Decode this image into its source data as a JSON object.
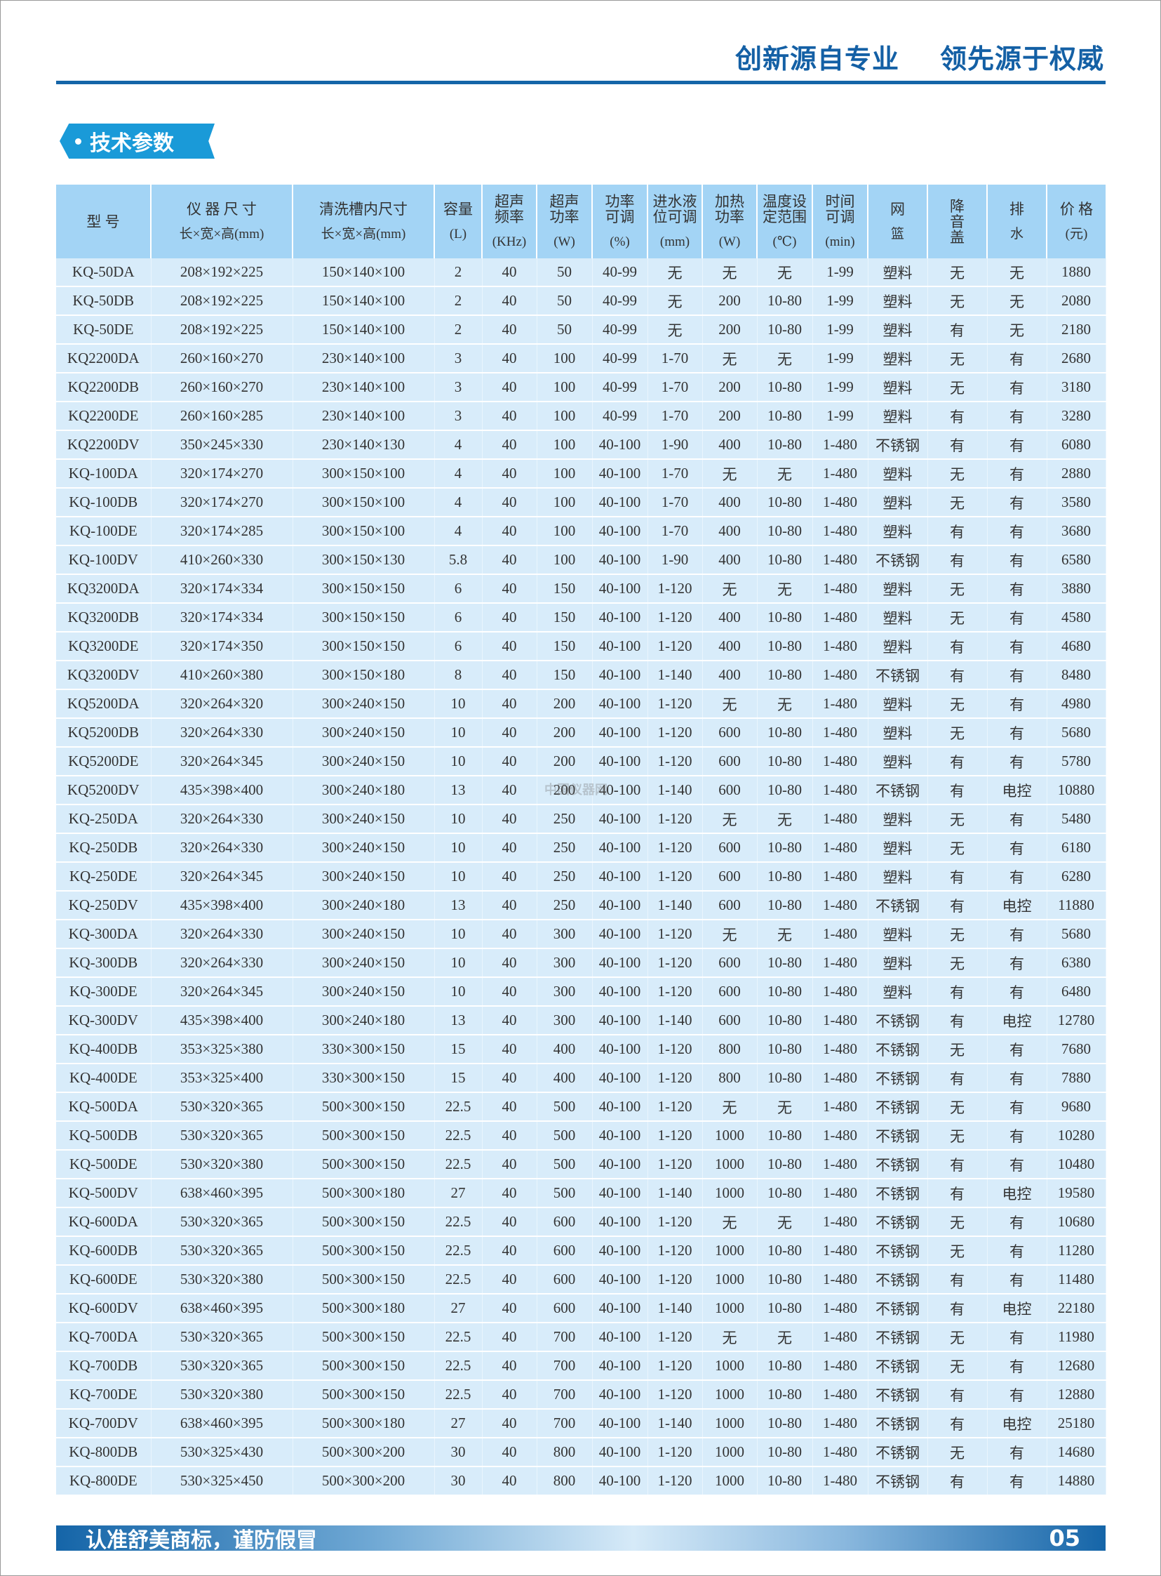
{
  "header": {
    "slogan_1": "创新源自专业",
    "slogan_2": "领先源于权威"
  },
  "section_title": "技术参数",
  "colors": {
    "brand": "#1565a8",
    "tag": "#1a9ad8",
    "header_cell": "#a3d4f5",
    "row": "#d8ecfa"
  },
  "table": {
    "columns": [
      {
        "top": "型  号",
        "bot": ""
      },
      {
        "top": "仪 器 尺 寸",
        "bot": "长×宽×高(mm)"
      },
      {
        "top": "清洗槽内尺寸",
        "bot": "长×宽×高(mm)"
      },
      {
        "top": "容量",
        "bot": "(L)"
      },
      {
        "top": "超声\n频率",
        "bot": "(KHz)"
      },
      {
        "top": "超声\n功率",
        "bot": "(W)"
      },
      {
        "top": "功率\n可调",
        "bot": "(%)"
      },
      {
        "top": "进水液\n位可调",
        "bot": "(mm)"
      },
      {
        "top": "加热\n功率",
        "bot": "(W)"
      },
      {
        "top": "温度设\n定范围",
        "bot": "(℃)"
      },
      {
        "top": "时间\n可调",
        "bot": "(min)"
      },
      {
        "top": "网",
        "bot": "篮"
      },
      {
        "top": "降\n音\n盖",
        "bot": ""
      },
      {
        "top": "排",
        "bot": "水"
      },
      {
        "top": "价 格",
        "bot": "(元)"
      }
    ],
    "rows": [
      [
        "KQ-50DA",
        "208×192×225",
        "150×140×100",
        "2",
        "40",
        "50",
        "40-99",
        "无",
        "无",
        "无",
        "1-99",
        "塑料",
        "无",
        "无",
        "1880"
      ],
      [
        "KQ-50DB",
        "208×192×225",
        "150×140×100",
        "2",
        "40",
        "50",
        "40-99",
        "无",
        "200",
        "10-80",
        "1-99",
        "塑料",
        "无",
        "无",
        "2080"
      ],
      [
        "KQ-50DE",
        "208×192×225",
        "150×140×100",
        "2",
        "40",
        "50",
        "40-99",
        "无",
        "200",
        "10-80",
        "1-99",
        "塑料",
        "有",
        "无",
        "2180"
      ],
      [
        "KQ2200DA",
        "260×160×270",
        "230×140×100",
        "3",
        "40",
        "100",
        "40-99",
        "1-70",
        "无",
        "无",
        "1-99",
        "塑料",
        "无",
        "有",
        "2680"
      ],
      [
        "KQ2200DB",
        "260×160×270",
        "230×140×100",
        "3",
        "40",
        "100",
        "40-99",
        "1-70",
        "200",
        "10-80",
        "1-99",
        "塑料",
        "无",
        "有",
        "3180"
      ],
      [
        "KQ2200DE",
        "260×160×285",
        "230×140×100",
        "3",
        "40",
        "100",
        "40-99",
        "1-70",
        "200",
        "10-80",
        "1-99",
        "塑料",
        "有",
        "有",
        "3280"
      ],
      [
        "KQ2200DV",
        "350×245×330",
        "230×140×130",
        "4",
        "40",
        "100",
        "40-100",
        "1-90",
        "400",
        "10-80",
        "1-480",
        "不锈钢",
        "有",
        "有",
        "6080"
      ],
      [
        "KQ-100DA",
        "320×174×270",
        "300×150×100",
        "4",
        "40",
        "100",
        "40-100",
        "1-70",
        "无",
        "无",
        "1-480",
        "塑料",
        "无",
        "有",
        "2880"
      ],
      [
        "KQ-100DB",
        "320×174×270",
        "300×150×100",
        "4",
        "40",
        "100",
        "40-100",
        "1-70",
        "400",
        "10-80",
        "1-480",
        "塑料",
        "无",
        "有",
        "3580"
      ],
      [
        "KQ-100DE",
        "320×174×285",
        "300×150×100",
        "4",
        "40",
        "100",
        "40-100",
        "1-70",
        "400",
        "10-80",
        "1-480",
        "塑料",
        "有",
        "有",
        "3680"
      ],
      [
        "KQ-100DV",
        "410×260×330",
        "300×150×130",
        "5.8",
        "40",
        "100",
        "40-100",
        "1-90",
        "400",
        "10-80",
        "1-480",
        "不锈钢",
        "有",
        "有",
        "6580"
      ],
      [
        "KQ3200DA",
        "320×174×334",
        "300×150×150",
        "6",
        "40",
        "150",
        "40-100",
        "1-120",
        "无",
        "无",
        "1-480",
        "塑料",
        "无",
        "有",
        "3880"
      ],
      [
        "KQ3200DB",
        "320×174×334",
        "300×150×150",
        "6",
        "40",
        "150",
        "40-100",
        "1-120",
        "400",
        "10-80",
        "1-480",
        "塑料",
        "无",
        "有",
        "4580"
      ],
      [
        "KQ3200DE",
        "320×174×350",
        "300×150×150",
        "6",
        "40",
        "150",
        "40-100",
        "1-120",
        "400",
        "10-80",
        "1-480",
        "塑料",
        "有",
        "有",
        "4680"
      ],
      [
        "KQ3200DV",
        "410×260×380",
        "300×150×180",
        "8",
        "40",
        "150",
        "40-100",
        "1-140",
        "400",
        "10-80",
        "1-480",
        "不锈钢",
        "有",
        "有",
        "8480"
      ],
      [
        "KQ5200DA",
        "320×264×320",
        "300×240×150",
        "10",
        "40",
        "200",
        "40-100",
        "1-120",
        "无",
        "无",
        "1-480",
        "塑料",
        "无",
        "有",
        "4980"
      ],
      [
        "KQ5200DB",
        "320×264×330",
        "300×240×150",
        "10",
        "40",
        "200",
        "40-100",
        "1-120",
        "600",
        "10-80",
        "1-480",
        "塑料",
        "无",
        "有",
        "5680"
      ],
      [
        "KQ5200DE",
        "320×264×345",
        "300×240×150",
        "10",
        "40",
        "200",
        "40-100",
        "1-120",
        "600",
        "10-80",
        "1-480",
        "塑料",
        "有",
        "有",
        "5780"
      ],
      [
        "KQ5200DV",
        "435×398×400",
        "300×240×180",
        "13",
        "40",
        "200",
        "40-100",
        "1-140",
        "600",
        "10-80",
        "1-480",
        "不锈钢",
        "有",
        "电控",
        "10880"
      ],
      [
        "KQ-250DA",
        "320×264×330",
        "300×240×150",
        "10",
        "40",
        "250",
        "40-100",
        "1-120",
        "无",
        "无",
        "1-480",
        "塑料",
        "无",
        "有",
        "5480"
      ],
      [
        "KQ-250DB",
        "320×264×330",
        "300×240×150",
        "10",
        "40",
        "250",
        "40-100",
        "1-120",
        "600",
        "10-80",
        "1-480",
        "塑料",
        "无",
        "有",
        "6180"
      ],
      [
        "KQ-250DE",
        "320×264×345",
        "300×240×150",
        "10",
        "40",
        "250",
        "40-100",
        "1-120",
        "600",
        "10-80",
        "1-480",
        "塑料",
        "有",
        "有",
        "6280"
      ],
      [
        "KQ-250DV",
        "435×398×400",
        "300×240×180",
        "13",
        "40",
        "250",
        "40-100",
        "1-140",
        "600",
        "10-80",
        "1-480",
        "不锈钢",
        "有",
        "电控",
        "11880"
      ],
      [
        "KQ-300DA",
        "320×264×330",
        "300×240×150",
        "10",
        "40",
        "300",
        "40-100",
        "1-120",
        "无",
        "无",
        "1-480",
        "塑料",
        "无",
        "有",
        "5680"
      ],
      [
        "KQ-300DB",
        "320×264×330",
        "300×240×150",
        "10",
        "40",
        "300",
        "40-100",
        "1-120",
        "600",
        "10-80",
        "1-480",
        "塑料",
        "无",
        "有",
        "6380"
      ],
      [
        "KQ-300DE",
        "320×264×345",
        "300×240×150",
        "10",
        "40",
        "300",
        "40-100",
        "1-120",
        "600",
        "10-80",
        "1-480",
        "塑料",
        "有",
        "有",
        "6480"
      ],
      [
        "KQ-300DV",
        "435×398×400",
        "300×240×180",
        "13",
        "40",
        "300",
        "40-100",
        "1-140",
        "600",
        "10-80",
        "1-480",
        "不锈钢",
        "有",
        "电控",
        "12780"
      ],
      [
        "KQ-400DB",
        "353×325×380",
        "330×300×150",
        "15",
        "40",
        "400",
        "40-100",
        "1-120",
        "800",
        "10-80",
        "1-480",
        "不锈钢",
        "无",
        "有",
        "7680"
      ],
      [
        "KQ-400DE",
        "353×325×400",
        "330×300×150",
        "15",
        "40",
        "400",
        "40-100",
        "1-120",
        "800",
        "10-80",
        "1-480",
        "不锈钢",
        "有",
        "有",
        "7880"
      ],
      [
        "KQ-500DA",
        "530×320×365",
        "500×300×150",
        "22.5",
        "40",
        "500",
        "40-100",
        "1-120",
        "无",
        "无",
        "1-480",
        "不锈钢",
        "无",
        "有",
        "9680"
      ],
      [
        "KQ-500DB",
        "530×320×365",
        "500×300×150",
        "22.5",
        "40",
        "500",
        "40-100",
        "1-120",
        "1000",
        "10-80",
        "1-480",
        "不锈钢",
        "无",
        "有",
        "10280"
      ],
      [
        "KQ-500DE",
        "530×320×380",
        "500×300×150",
        "22.5",
        "40",
        "500",
        "40-100",
        "1-120",
        "1000",
        "10-80",
        "1-480",
        "不锈钢",
        "有",
        "有",
        "10480"
      ],
      [
        "KQ-500DV",
        "638×460×395",
        "500×300×180",
        "27",
        "40",
        "500",
        "40-100",
        "1-140",
        "1000",
        "10-80",
        "1-480",
        "不锈钢",
        "有",
        "电控",
        "19580"
      ],
      [
        "KQ-600DA",
        "530×320×365",
        "500×300×150",
        "22.5",
        "40",
        "600",
        "40-100",
        "1-120",
        "无",
        "无",
        "1-480",
        "不锈钢",
        "无",
        "有",
        "10680"
      ],
      [
        "KQ-600DB",
        "530×320×365",
        "500×300×150",
        "22.5",
        "40",
        "600",
        "40-100",
        "1-120",
        "1000",
        "10-80",
        "1-480",
        "不锈钢",
        "无",
        "有",
        "11280"
      ],
      [
        "KQ-600DE",
        "530×320×380",
        "500×300×150",
        "22.5",
        "40",
        "600",
        "40-100",
        "1-120",
        "1000",
        "10-80",
        "1-480",
        "不锈钢",
        "有",
        "有",
        "11480"
      ],
      [
        "KQ-600DV",
        "638×460×395",
        "500×300×180",
        "27",
        "40",
        "600",
        "40-100",
        "1-140",
        "1000",
        "10-80",
        "1-480",
        "不锈钢",
        "有",
        "电控",
        "22180"
      ],
      [
        "KQ-700DA",
        "530×320×365",
        "500×300×150",
        "22.5",
        "40",
        "700",
        "40-100",
        "1-120",
        "无",
        "无",
        "1-480",
        "不锈钢",
        "无",
        "有",
        "11980"
      ],
      [
        "KQ-700DB",
        "530×320×365",
        "500×300×150",
        "22.5",
        "40",
        "700",
        "40-100",
        "1-120",
        "1000",
        "10-80",
        "1-480",
        "不锈钢",
        "无",
        "有",
        "12680"
      ],
      [
        "KQ-700DE",
        "530×320×380",
        "500×300×150",
        "22.5",
        "40",
        "700",
        "40-100",
        "1-120",
        "1000",
        "10-80",
        "1-480",
        "不锈钢",
        "有",
        "有",
        "12880"
      ],
      [
        "KQ-700DV",
        "638×460×395",
        "500×300×180",
        "27",
        "40",
        "700",
        "40-100",
        "1-140",
        "1000",
        "10-80",
        "1-480",
        "不锈钢",
        "有",
        "电控",
        "25180"
      ],
      [
        "KQ-800DB",
        "530×325×430",
        "500×300×200",
        "30",
        "40",
        "800",
        "40-100",
        "1-120",
        "1000",
        "10-80",
        "1-480",
        "不锈钢",
        "无",
        "有",
        "14680"
      ],
      [
        "KQ-800DE",
        "530×325×450",
        "500×300×200",
        "30",
        "40",
        "800",
        "40-100",
        "1-120",
        "1000",
        "10-80",
        "1-480",
        "不锈钢",
        "有",
        "有",
        "14880"
      ]
    ]
  },
  "watermark": "中国仪器网",
  "footer": {
    "slogan": "认准舒美商标，谨防假冒",
    "page_number": "05"
  }
}
